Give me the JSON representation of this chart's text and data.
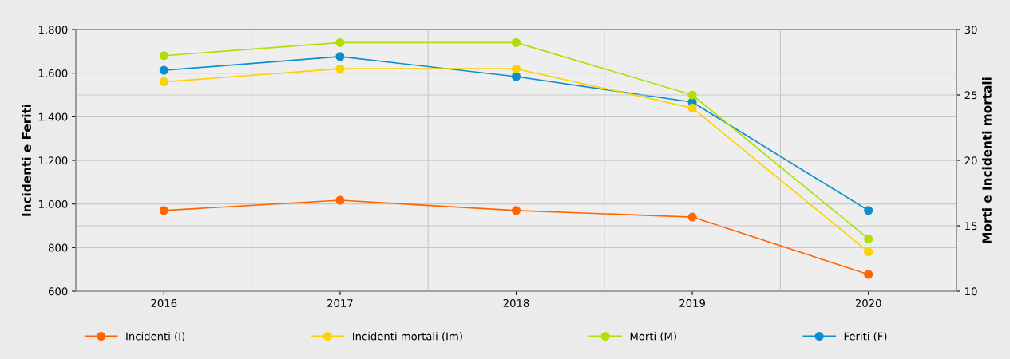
{
  "chart_data": {
    "type": "line",
    "ylabel": "Incidenti e Feriti",
    "y2label": "Morti e Incidenti mortali",
    "categories": [
      "2016",
      "2017",
      "2018",
      "2019",
      "2020"
    ],
    "series": [
      {
        "name": "Incidenti (I)",
        "color": "#ff6600",
        "values": [
          970,
          1017,
          970,
          940,
          677
        ]
      },
      {
        "name": "Incidenti mortali (Im)",
        "color": "#fcd202",
        "axis": "y2",
        "values": [
          26,
          27,
          27,
          24,
          13
        ]
      },
      {
        "name": "Morti (M)",
        "color": "#b0de09",
        "axis": "y2",
        "values": [
          28,
          29,
          29,
          25,
          14
        ]
      },
      {
        "name": "Feriti (F)",
        "color": "#0d8ecf",
        "values": [
          1613,
          1676,
          1584,
          1467,
          970
        ]
      }
    ],
    "ylim": [
      600,
      1800
    ],
    "yticks": [
      600,
      800,
      {
        "value": 1000,
        "label": "1.000"
      },
      {
        "value": 1200,
        "label": "1.200"
      },
      {
        "value": 1400,
        "label": "1.400"
      },
      {
        "value": 1600,
        "label": "1.600"
      },
      {
        "value": 1800,
        "label": "1.800"
      }
    ],
    "y2lim": [
      10,
      30
    ],
    "y2ticks": [
      10,
      15,
      20,
      25,
      30
    ],
    "grid": true,
    "legend": "bottom",
    "marker": "circle",
    "line_style": "solid"
  }
}
